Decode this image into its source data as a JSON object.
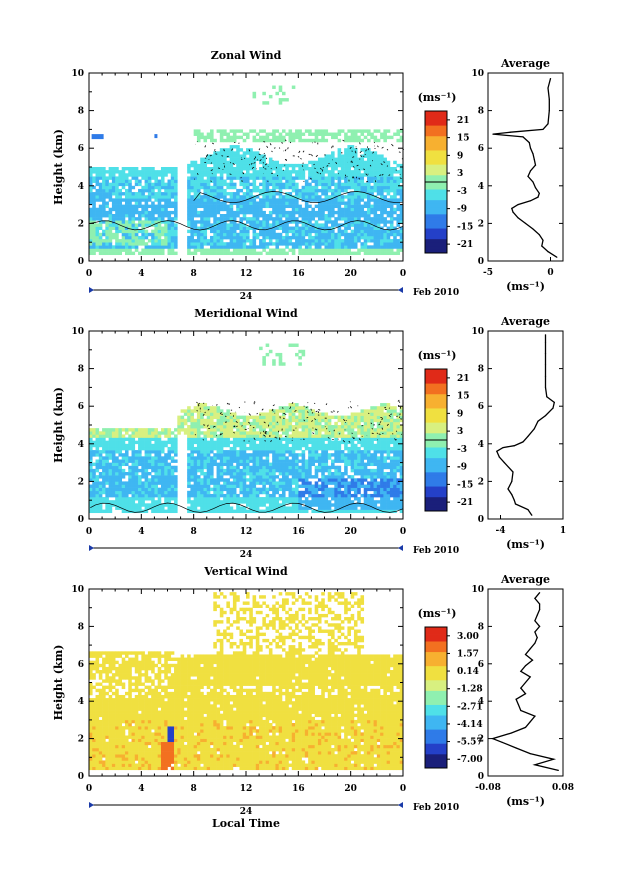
{
  "chart_data": [
    {
      "type": "heatmap",
      "title": "Zonal Wind",
      "ylabel": "Height (km)",
      "ylim": [
        0,
        10
      ],
      "xlim": [
        0,
        24
      ],
      "x_tick_labels": [
        "0",
        "4",
        "8",
        "12",
        "16",
        "20",
        "0"
      ],
      "y_tick_labels": [
        "0",
        "2",
        "4",
        "6",
        "8",
        "10"
      ],
      "date_label": "24",
      "month_label": "Feb 2010",
      "colorbar": {
        "unit": "(ms⁻¹)",
        "tick_labels": [
          "21",
          "15",
          "9",
          "3",
          "-3",
          "-9",
          "-15",
          "-21"
        ],
        "range": [
          -24,
          24
        ]
      },
      "profile": {
        "title": "Average",
        "xlabel": "(ms⁻¹)",
        "xlim": [
          -5,
          1
        ],
        "x_tick_labels": [
          "-5",
          "0"
        ],
        "y_tick_labels": [
          "0",
          "2",
          "4",
          "6",
          "8",
          "10"
        ],
        "height": [
          0.2,
          0.5,
          0.8,
          1.1,
          1.4,
          1.7,
          2.0,
          2.3,
          2.6,
          2.8,
          3.0,
          3.2,
          3.4,
          3.6,
          3.9,
          4.2,
          4.5,
          4.8,
          5.1,
          5.4,
          5.7,
          6.0,
          6.3,
          6.6,
          6.75,
          6.85,
          7.0,
          7.3,
          8.0,
          8.6,
          9.2,
          9.7
        ],
        "values": [
          0.5,
          -0.2,
          -0.7,
          -0.6,
          -0.9,
          -1.4,
          -2.0,
          -2.6,
          -3.0,
          -3.1,
          -2.6,
          -1.6,
          -1.0,
          -0.9,
          -1.2,
          -1.4,
          -1.8,
          -1.6,
          -1.2,
          -1.3,
          -1.4,
          -1.6,
          -1.7,
          -2.2,
          -4.6,
          -3.2,
          -0.6,
          -0.2,
          -0.1,
          -0.1,
          -0.2,
          0.0
        ]
      }
    },
    {
      "type": "heatmap",
      "title": "Meridional Wind",
      "ylabel": "Height (km)",
      "ylim": [
        0,
        10
      ],
      "xlim": [
        0,
        24
      ],
      "x_tick_labels": [
        "0",
        "4",
        "8",
        "12",
        "16",
        "20",
        "0"
      ],
      "y_tick_labels": [
        "0",
        "2",
        "4",
        "6",
        "8",
        "10"
      ],
      "date_label": "24",
      "month_label": "Feb 2010",
      "colorbar": {
        "unit": "(ms⁻¹)",
        "tick_labels": [
          "21",
          "15",
          "9",
          "3",
          "-3",
          "-9",
          "-15",
          "-21"
        ],
        "range": [
          -24,
          24
        ]
      },
      "profile": {
        "title": "Average",
        "xlabel": "(ms⁻¹)",
        "xlim": [
          -5,
          1
        ],
        "x_tick_labels": [
          "-4",
          "1"
        ],
        "y_tick_labels": [
          "0",
          "2",
          "4",
          "6",
          "8",
          "10"
        ],
        "height": [
          0.2,
          0.5,
          0.8,
          1.0,
          1.3,
          1.6,
          2.0,
          2.5,
          3.0,
          3.3,
          3.6,
          3.8,
          3.9,
          4.1,
          4.4,
          4.8,
          5.2,
          5.5,
          5.9,
          6.2,
          6.5,
          7.0,
          7.6,
          8.2,
          8.8,
          9.4,
          9.8
        ],
        "values": [
          -1.5,
          -1.8,
          -2.8,
          -2.9,
          -3.1,
          -3.4,
          -3.1,
          -3.0,
          -3.7,
          -4.1,
          -4.3,
          -3.8,
          -2.9,
          -2.2,
          -1.8,
          -1.3,
          -1.0,
          -0.4,
          0.2,
          0.3,
          -0.3,
          -0.4,
          -0.4,
          -0.4,
          -0.4,
          -0.4,
          -0.4
        ]
      }
    },
    {
      "type": "heatmap",
      "title": "Vertical Wind",
      "ylabel": "Height (km)",
      "xlabel": "Local Time",
      "ylim": [
        0,
        10
      ],
      "xlim": [
        0,
        24
      ],
      "x_tick_labels": [
        "0",
        "4",
        "8",
        "12",
        "16",
        "20",
        "0"
      ],
      "y_tick_labels": [
        "0",
        "2",
        "4",
        "6",
        "8",
        "10"
      ],
      "date_label": "24",
      "month_label": "Feb 2010",
      "colorbar": {
        "unit": "(ms⁻¹)",
        "tick_labels": [
          "3.00",
          "1.57",
          "0.14",
          "-1.28",
          "-2.71",
          "-4.14",
          "-5.57",
          "-7.00"
        ],
        "range": [
          -7.7,
          3.7
        ]
      },
      "profile": {
        "title": "Average",
        "xlabel": "(ms⁻¹)",
        "xlim": [
          -0.08,
          0.08
        ],
        "x_tick_labels": [
          "-0.08",
          "0.08"
        ],
        "y_tick_labels": [
          "0",
          "2",
          "4",
          "6",
          "8",
          "10"
        ],
        "height": [
          0.3,
          0.6,
          0.9,
          1.2,
          1.5,
          1.8,
          2.0,
          2.3,
          2.6,
          2.9,
          3.2,
          3.5,
          3.8,
          4.1,
          4.4,
          4.7,
          5.0,
          5.3,
          5.6,
          5.9,
          6.2,
          6.5,
          6.8,
          7.1,
          7.4,
          7.7,
          8.0,
          8.3,
          8.6,
          8.9,
          9.2,
          9.5,
          9.8
        ],
        "values": [
          0.07,
          0.02,
          0.06,
          0.01,
          -0.02,
          -0.05,
          -0.07,
          -0.03,
          0.0,
          0.01,
          0.02,
          -0.01,
          -0.015,
          -0.02,
          0.0,
          -0.01,
          0.0,
          0.01,
          -0.01,
          0.0,
          0.015,
          0.0,
          0.01,
          0.02,
          0.025,
          0.02,
          0.03,
          0.02,
          0.025,
          0.03,
          0.03,
          0.02,
          0.03
        ]
      }
    }
  ]
}
